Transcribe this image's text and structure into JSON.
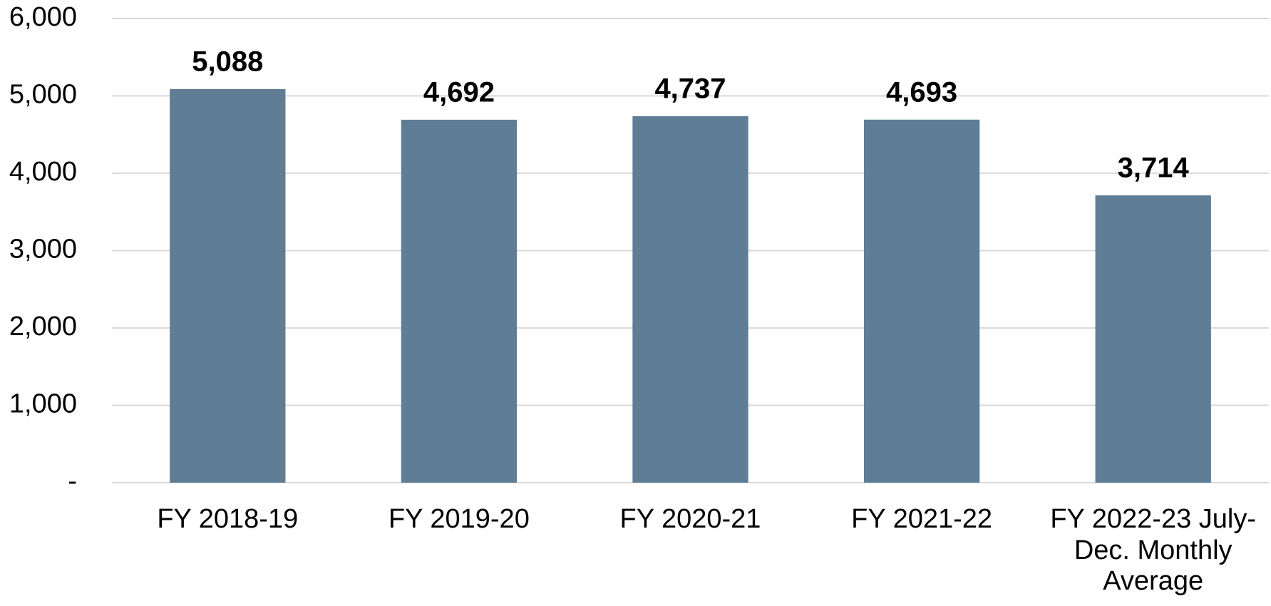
{
  "chart_data": {
    "type": "bar",
    "categories": [
      "FY 2018-19",
      "FY 2019-20",
      "FY 2020-21",
      "FY 2021-22",
      "FY 2022-23 July-Dec. Monthly Average"
    ],
    "values": [
      5088,
      4692,
      4737,
      4693,
      3714
    ],
    "value_labels": [
      "5,088",
      "4,692",
      "4,737",
      "4,693",
      "3,714"
    ],
    "color": "#607d96",
    "ylim": [
      0,
      6000
    ],
    "yticks": [
      {
        "value": 0,
        "label": "-"
      },
      {
        "value": 1000,
        "label": "1,000"
      },
      {
        "value": 2000,
        "label": "2,000"
      },
      {
        "value": 3000,
        "label": "3,000"
      },
      {
        "value": 4000,
        "label": "4,000"
      },
      {
        "value": 5000,
        "label": "5,000"
      },
      {
        "value": 6000,
        "label": "6,000"
      }
    ],
    "grid": true
  }
}
